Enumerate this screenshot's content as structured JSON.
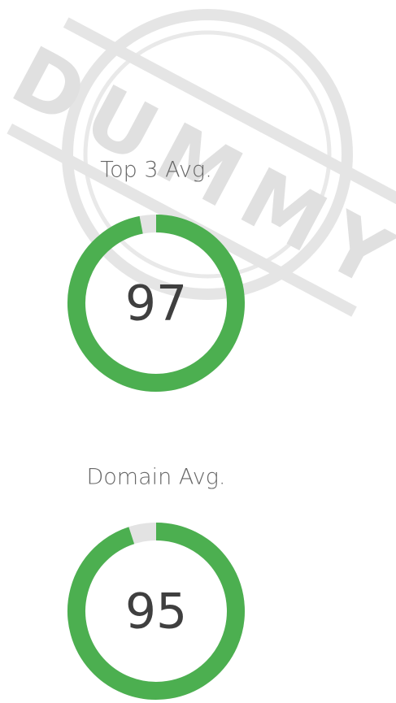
{
  "watermark": "DUMMY",
  "chart_data": [
    {
      "type": "gauge",
      "title": "Top 3 Avg.",
      "value": 97,
      "ylim": [
        0,
        100
      ],
      "color": "#4caf50",
      "track_color": "#e3e3e3"
    },
    {
      "type": "gauge",
      "title": "Domain Avg.",
      "value": 95,
      "ylim": [
        0,
        100
      ],
      "color": "#4caf50",
      "track_color": "#e3e3e3"
    }
  ]
}
